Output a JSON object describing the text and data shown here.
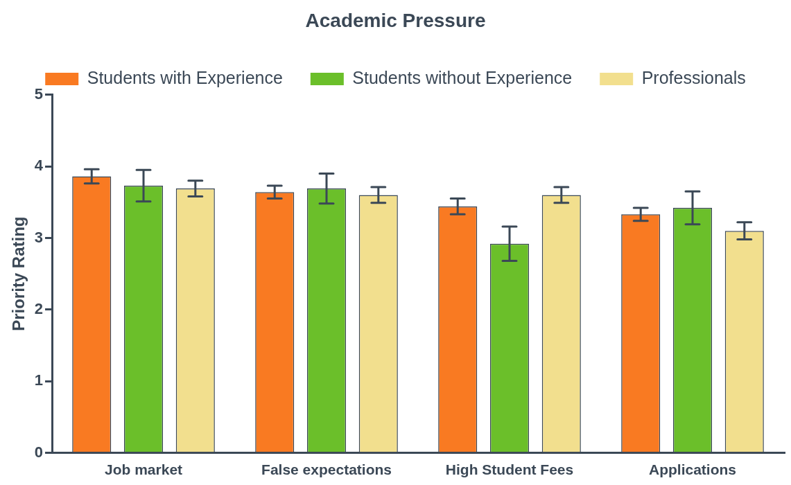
{
  "chart_data": {
    "type": "bar",
    "title": "Academic Pressure",
    "ylabel": "Priority Rating",
    "categories": [
      "Job market",
      "False expectations",
      "High Student Fees",
      "Applications"
    ],
    "series": [
      {
        "name": "Students with Experience",
        "color": "#f97a22",
        "values": [
          3.86,
          3.64,
          3.44,
          3.33
        ],
        "errors": [
          0.1,
          0.09,
          0.11,
          0.09
        ]
      },
      {
        "name": "Students without Experience",
        "color": "#6bbf2a",
        "values": [
          3.73,
          3.69,
          2.92,
          3.42
        ],
        "errors": [
          0.22,
          0.21,
          0.24,
          0.23
        ]
      },
      {
        "name": "Professionals",
        "color": "#f2df8e",
        "values": [
          3.69,
          3.6,
          3.6,
          3.1
        ],
        "errors": [
          0.11,
          0.11,
          0.11,
          0.12
        ]
      }
    ],
    "ylim": [
      0,
      5
    ],
    "yticks": [
      0,
      1,
      2,
      3,
      4,
      5
    ],
    "grid": false,
    "legend": "top"
  }
}
